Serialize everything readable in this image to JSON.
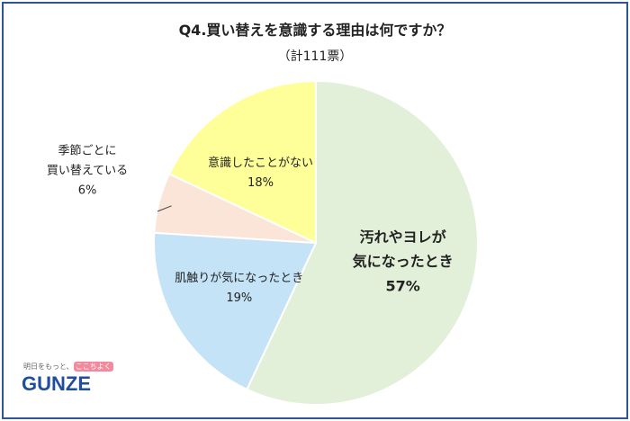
{
  "chart_data": {
    "type": "pie",
    "title": "Q4.買い替えを意識する理由は何ですか？",
    "subtitle": "（計111票）",
    "slices": [
      {
        "label_lines": [
          "汚れやヨレが",
          "気になったとき"
        ],
        "percent_label": "57%",
        "value": 57,
        "color": "#e2f0d9",
        "bold": true
      },
      {
        "label_lines": [
          "肌触りが気になったとき"
        ],
        "percent_label": "19%",
        "value": 19,
        "color": "#c5e3f7",
        "bold": false
      },
      {
        "label_lines": [
          "季節ごとに",
          "買い替えている"
        ],
        "percent_label": "6%",
        "value": 6,
        "color": "#fbe4d8",
        "bold": false
      },
      {
        "label_lines": [
          "意識したことがない"
        ],
        "percent_label": "18%",
        "value": 18,
        "color": "#ffff99",
        "bold": false
      }
    ]
  },
  "logo": {
    "tagline_prefix": "明日をもっと、",
    "tagline_highlight": "ここちよく",
    "brand": "GUNZE"
  }
}
